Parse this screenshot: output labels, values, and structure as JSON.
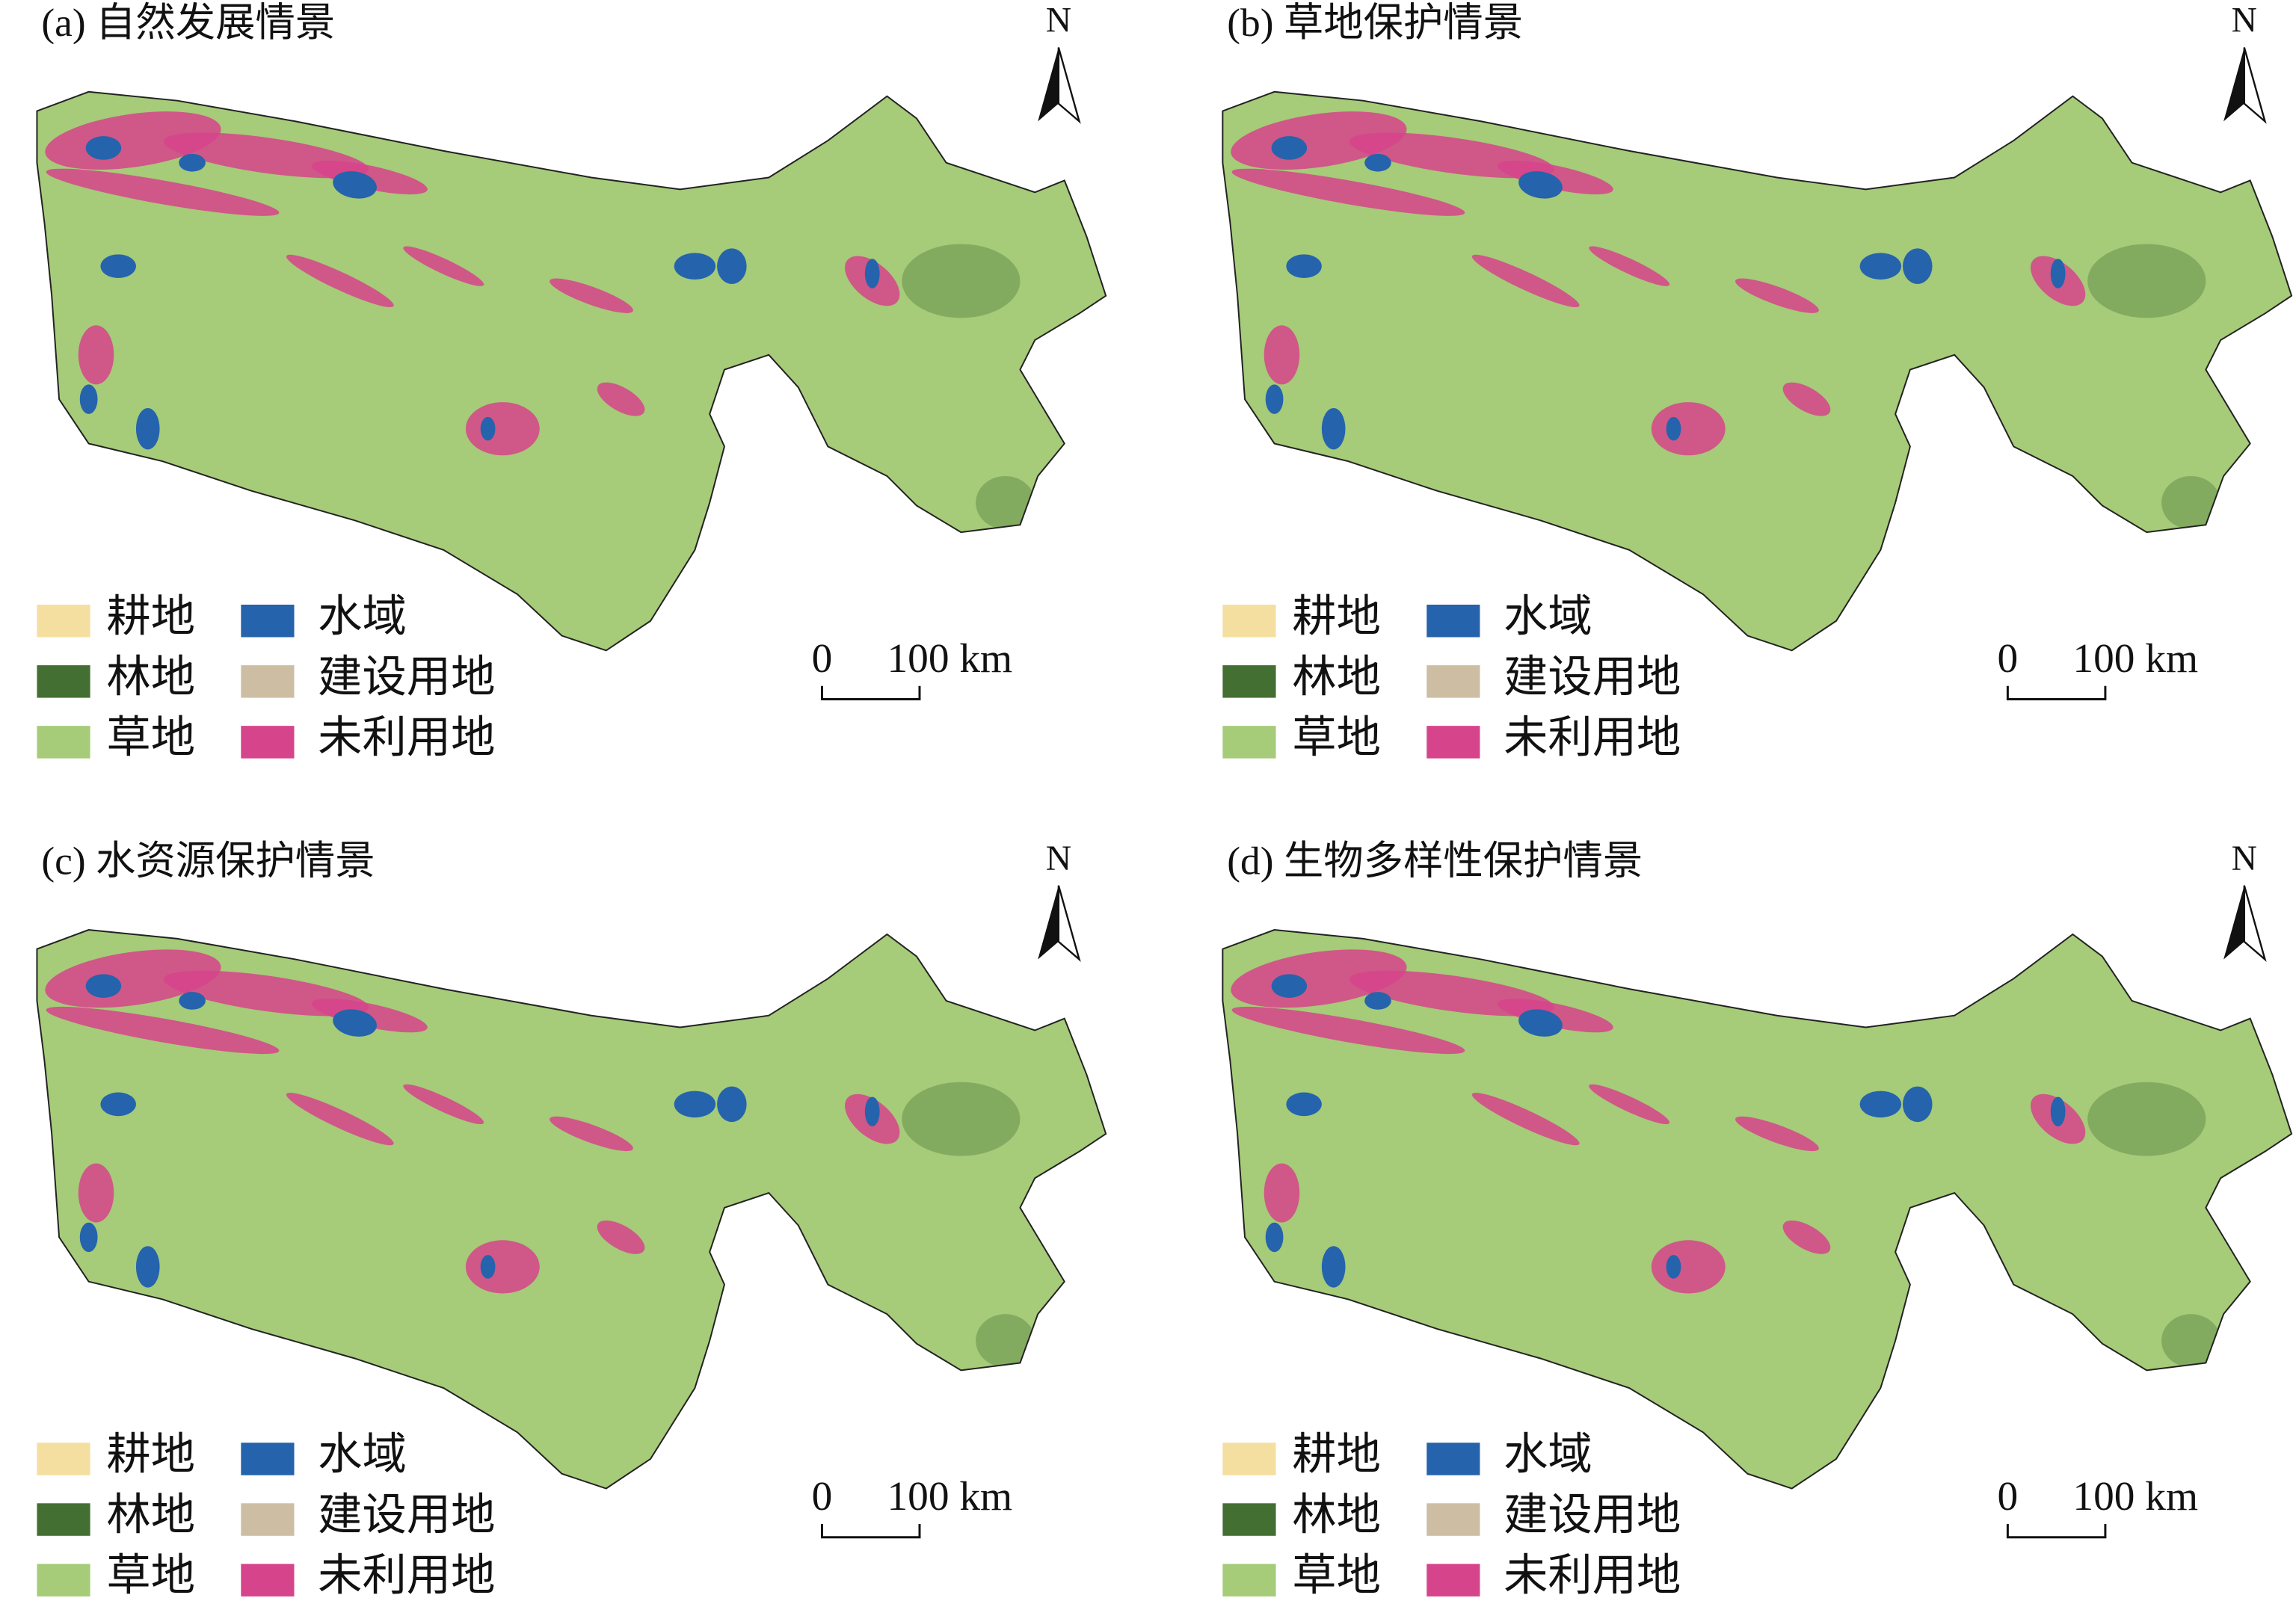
{
  "panels": [
    {
      "title": "(a) 自然发展情景"
    },
    {
      "title": "(b) 草地保护情景"
    },
    {
      "title": "(c) 水资源保护情景"
    },
    {
      "title": "(d) 生物多样性保护情景"
    }
  ],
  "north": "N",
  "scale_bar": {
    "start": "0",
    "end": "100 km"
  },
  "legend": {
    "items": [
      {
        "label": "耕地",
        "color": "#f5dfa0"
      },
      {
        "label": "林地",
        "color": "#436f32"
      },
      {
        "label": "草地",
        "color": "#a6cb79"
      },
      {
        "label": "水域",
        "color": "#2563ad"
      },
      {
        "label": "建设用地",
        "color": "#cdbda3"
      },
      {
        "label": "未利用地",
        "color": "#d6448b"
      }
    ]
  }
}
